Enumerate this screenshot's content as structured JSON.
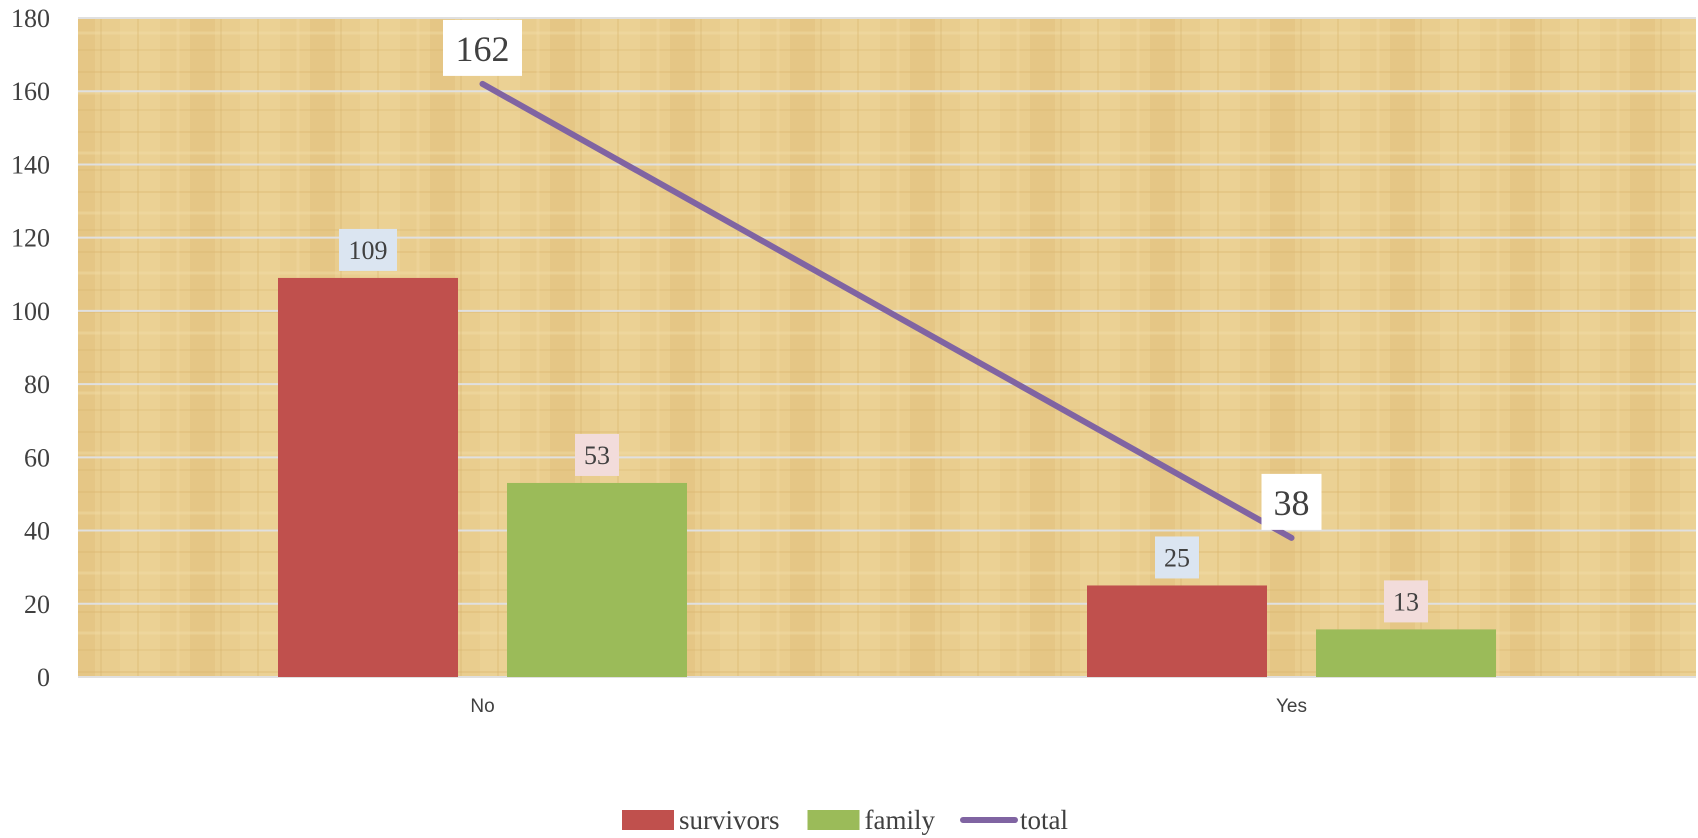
{
  "chart_data": {
    "type": "bar",
    "categories": [
      "No",
      "Yes"
    ],
    "series": [
      {
        "name": "survivors",
        "kind": "bar",
        "values": [
          109,
          25
        ],
        "color": "#C0504D",
        "label_bg": "#DBE5F1"
      },
      {
        "name": "family",
        "kind": "bar",
        "values": [
          53,
          13
        ],
        "color": "#9BBB59",
        "label_bg": "#F2DCDB"
      },
      {
        "name": "total",
        "kind": "line",
        "values": [
          162,
          38
        ],
        "color": "#8064A2",
        "label_bg": "#FFFFFF"
      }
    ],
    "y_ticks": [
      "0",
      "20",
      "40",
      "60",
      "80",
      "100",
      "120",
      "140",
      "160",
      "180"
    ],
    "ylim": [
      0,
      180
    ],
    "grid": true,
    "legend_position": "bottom",
    "title": "",
    "xlabel": "",
    "ylabel": "",
    "plot_background": "#E8CC8C",
    "gridline_color": "#E0E0E0"
  }
}
